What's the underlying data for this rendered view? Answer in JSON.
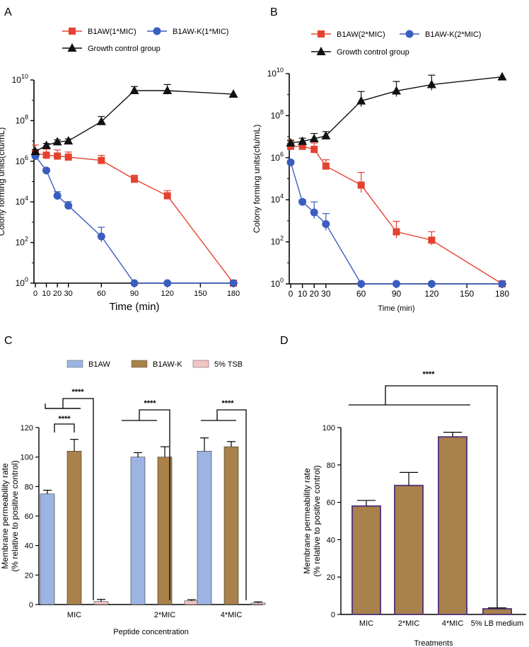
{
  "chart_data": [
    {
      "panel": "A",
      "type": "line",
      "yscale": "log",
      "xlabel": "Time (min)",
      "ylabel": "Colony forming units(cfu/mL)",
      "x_ticks": [
        0,
        10,
        20,
        30,
        60,
        90,
        120,
        150,
        180
      ],
      "y_ticks": [
        {
          "value": 1,
          "base": "10",
          "exp": "0"
        },
        {
          "value": 100,
          "base": "10",
          "exp": "2"
        },
        {
          "value": 10000,
          "base": "10",
          "exp": "4"
        },
        {
          "value": 1000000,
          "base": "10",
          "exp": "6"
        },
        {
          "value": 100000000,
          "base": "10",
          "exp": "8"
        },
        {
          "value": 10000000000,
          "base": "10",
          "exp": "10"
        }
      ],
      "xlim": [
        0,
        180
      ],
      "ylim": [
        1,
        10000000000
      ],
      "series": [
        {
          "name": "B1AW(1*MIC)",
          "color": "#e5412f",
          "marker": "square",
          "x": [
            0,
            10,
            20,
            30,
            60,
            90,
            120,
            180
          ],
          "y": [
            2500000,
            2000000,
            1800000,
            1600000,
            1100000,
            130000,
            20000,
            1
          ],
          "err": [
            0.4,
            0.3,
            0.3,
            0.25,
            0.25,
            0.2,
            0.25,
            0
          ]
        },
        {
          "name": "B1AW-K(1*MIC)",
          "color": "#3a5dbf",
          "marker": "circle",
          "x": [
            0,
            10,
            20,
            30,
            60,
            90,
            120,
            180
          ],
          "y": [
            1800000,
            350000,
            20000,
            6500,
            200,
            1,
            1,
            1
          ],
          "err": [
            0.15,
            0.1,
            0.2,
            0.2,
            0.45,
            0,
            0,
            0
          ]
        },
        {
          "name": "Growth control group",
          "color": "#111111",
          "marker": "triangle",
          "x": [
            0,
            10,
            20,
            30,
            60,
            90,
            120,
            180
          ],
          "y": [
            3000000,
            6000000,
            9000000,
            10000000,
            90000000,
            3000000000,
            3000000000,
            2000000000
          ],
          "err": [
            0.1,
            0.1,
            0.1,
            0.1,
            0.25,
            0.2,
            0.3,
            0
          ]
        }
      ]
    },
    {
      "panel": "B",
      "type": "line",
      "yscale": "log",
      "xlabel": "Time (min)",
      "ylabel": "Colony forming units(cfu/mL)",
      "x_ticks": [
        0,
        10,
        20,
        30,
        60,
        90,
        120,
        150,
        180
      ],
      "x_tick_labels": [
        "0",
        "10",
        "20",
        "30",
        "60",
        "90",
        "120",
        "150",
        "180"
      ],
      "y_ticks": [
        {
          "value": 1,
          "base": "10",
          "exp": "0"
        },
        {
          "value": 100,
          "base": "10",
          "exp": "2"
        },
        {
          "value": 10000,
          "base": "10",
          "exp": "4"
        },
        {
          "value": 1000000,
          "base": "10",
          "exp": "6"
        },
        {
          "value": 100000000,
          "base": "10",
          "exp": "8"
        },
        {
          "value": 10000000000,
          "base": "10",
          "exp": "10"
        }
      ],
      "xlim": [
        0,
        180
      ],
      "ylim": [
        1,
        10000000000
      ],
      "series": [
        {
          "name": "B1AW(2*MIC)",
          "color": "#e5412f",
          "marker": "square",
          "x": [
            0,
            10,
            20,
            30,
            60,
            90,
            120,
            180
          ],
          "y": [
            3500000,
            3500000,
            2500000,
            400000,
            50000,
            300,
            120,
            1
          ],
          "err": [
            0.3,
            0.2,
            0.3,
            0.3,
            0.6,
            0.5,
            0.4,
            0
          ]
        },
        {
          "name": "B1AW-K(2*MIC)",
          "color": "#3a5dbf",
          "marker": "circle",
          "x": [
            0,
            10,
            20,
            30,
            60,
            90,
            120,
            180
          ],
          "y": [
            600000,
            8000,
            2500,
            700,
            1,
            1,
            1,
            1
          ],
          "err": [
            0.1,
            0.1,
            0.5,
            0.5,
            0,
            0,
            0,
            0
          ]
        },
        {
          "name": "Growth control group",
          "color": "#111111",
          "marker": "triangle",
          "x": [
            0,
            10,
            20,
            30,
            60,
            90,
            120,
            180
          ],
          "y": [
            5000000,
            6000000,
            8000000,
            11000000,
            500000000,
            1500000000,
            3000000000,
            7000000000
          ],
          "err": [
            0.1,
            0.15,
            0.25,
            0.2,
            0.45,
            0.45,
            0.45,
            0
          ]
        }
      ]
    },
    {
      "panel": "C",
      "type": "bar",
      "xlabel": "Peptide concentration",
      "ylabel": "Membrane permeability rate",
      "ylabel2": "(% relative to positive control)",
      "categories": [
        "MIC",
        "2*MIC",
        "4*MIC"
      ],
      "ylim": [
        0,
        120
      ],
      "y_ticks": [
        0,
        20,
        40,
        60,
        80,
        100,
        120
      ],
      "series": [
        {
          "name": "B1AW",
          "color": "#9bb4e3",
          "values": [
            75,
            100,
            104
          ],
          "err": [
            2.5,
            3,
            9
          ]
        },
        {
          "name": "B1AW-K",
          "color": "#a9814a",
          "values": [
            104,
            100,
            107
          ],
          "err": [
            8,
            7,
            3.5
          ]
        },
        {
          "name": "5% TSB",
          "color": "#f2c5c5",
          "values": [
            2,
            2.5,
            1
          ],
          "err": [
            1.5,
            0.8,
            0.8
          ]
        }
      ],
      "significance": [
        "****",
        "****",
        "****",
        "****"
      ]
    },
    {
      "panel": "D",
      "type": "bar",
      "xlabel": "Treatments",
      "ylabel": "Membrane permeability rate",
      "ylabel2": "(% relative to positive control)",
      "categories": [
        "MIC",
        "2*MIC",
        "4*MIC",
        "5% LB medium"
      ],
      "ylim": [
        0,
        100
      ],
      "y_ticks": [
        0,
        20,
        40,
        60,
        80,
        100
      ],
      "values": [
        58,
        69,
        95,
        3
      ],
      "err": [
        3,
        7,
        2.5,
        0.5
      ],
      "color": "#a9814a",
      "edge_color": "#5a3d7a",
      "significance": "****"
    }
  ],
  "panel_letters": {
    "a": "A",
    "b": "B",
    "c": "C",
    "d": "D"
  }
}
